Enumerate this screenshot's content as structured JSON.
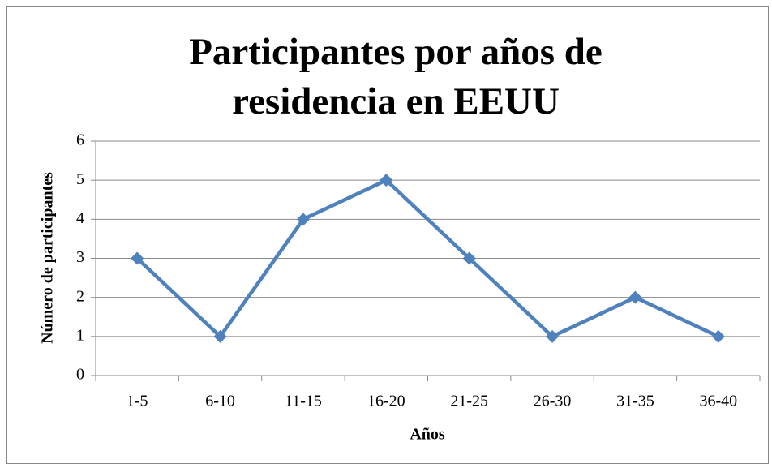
{
  "chart_data": {
    "type": "line",
    "title": "Participantes por años de residencia en EEUU",
    "x_label": "Años",
    "y_label": "Número de participantes",
    "categories": [
      "1-5",
      "6-10",
      "11-15",
      "16-20",
      "21-25",
      "26-30",
      "31-35",
      "36-40"
    ],
    "series": [
      {
        "name": "Participantes",
        "color": "#4f81bd",
        "values": [
          3,
          1,
          4,
          5,
          3,
          1,
          2,
          1
        ]
      }
    ],
    "ylim": [
      0,
      6
    ],
    "yticks": [
      0,
      1,
      2,
      3,
      4,
      5,
      6
    ],
    "grid": true,
    "legend": false
  }
}
